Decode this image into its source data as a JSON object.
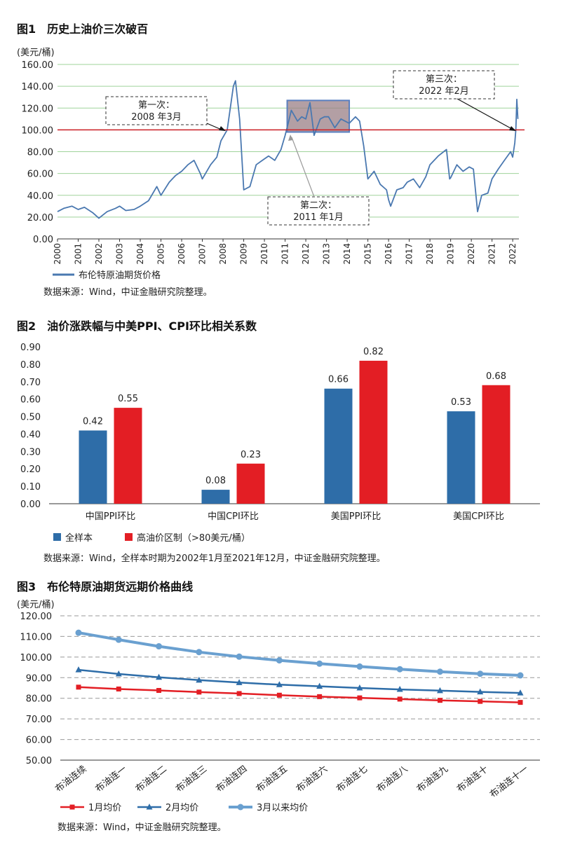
{
  "figures": [
    {
      "title": "图1　历史上油价三次破百",
      "unit": "(美元/桶)",
      "source": "数据来源：Wind，中证金融研究院整理。"
    },
    {
      "title": "图2　油价涨跌幅与中美PPI、CPI环比相关系数",
      "source": "数据来源：Wind，全样本时期为2002年1月至2021年12月，中证金融研究院整理。"
    },
    {
      "title": "图3　布伦特原油期货远期价格曲线",
      "unit": "(美元/桶)",
      "source": "数据来源：Wind，中证金融研究院整理。"
    }
  ],
  "chart_data": [
    {
      "type": "line",
      "title": "历史上油价三次破百",
      "ylabel": "(美元/桶)",
      "ylim": [
        0,
        160
      ],
      "yticks": [
        "0.00",
        "20.00",
        "40.00",
        "60.00",
        "80.00",
        "100.00",
        "120.00",
        "140.00",
        "160.00"
      ],
      "xticks": [
        "2000",
        "2001",
        "2002",
        "2003",
        "2004",
        "2005",
        "2006",
        "2007",
        "2008",
        "2009",
        "2010",
        "2011",
        "2012",
        "2013",
        "2014",
        "2015",
        "2016",
        "2017",
        "2018",
        "2019",
        "2020",
        "2021",
        "2022"
      ],
      "xlim": [
        2000,
        2022.3
      ],
      "series": [
        {
          "name": "布伦特原油期货价格",
          "color": "#4a78b0",
          "x": [
            2000.0,
            2000.3,
            2000.7,
            2001.0,
            2001.3,
            2001.7,
            2002.0,
            2002.4,
            2002.8,
            2003.0,
            2003.3,
            2003.7,
            2004.0,
            2004.4,
            2004.8,
            2005.0,
            2005.4,
            2005.7,
            2006.0,
            2006.3,
            2006.6,
            2006.9,
            2007.0,
            2007.4,
            2007.7,
            2007.9,
            2008.2,
            2008.5,
            2008.6,
            2008.8,
            2009.0,
            2009.3,
            2009.6,
            2009.9,
            2010.2,
            2010.5,
            2010.8,
            2011.0,
            2011.2,
            2011.3,
            2011.6,
            2011.8,
            2012.0,
            2012.2,
            2012.4,
            2012.7,
            2012.9,
            2013.1,
            2013.4,
            2013.7,
            2013.9,
            2014.1,
            2014.4,
            2014.6,
            2014.8,
            2015.0,
            2015.3,
            2015.6,
            2015.9,
            2016.0,
            2016.1,
            2016.4,
            2016.7,
            2016.9,
            2017.2,
            2017.5,
            2017.8,
            2018.0,
            2018.4,
            2018.8,
            2018.95,
            2019.0,
            2019.3,
            2019.6,
            2019.9,
            2020.1,
            2020.3,
            2020.5,
            2020.8,
            2021.0,
            2021.3,
            2021.6,
            2021.9,
            2022.0,
            2022.1,
            2022.15,
            2022.2,
            2022.25
          ],
          "y": [
            25,
            28,
            30,
            27,
            29,
            24,
            19,
            25,
            28,
            30,
            26,
            27,
            30,
            35,
            48,
            40,
            52,
            58,
            62,
            68,
            72,
            60,
            55,
            68,
            75,
            90,
            100,
            140,
            145,
            110,
            45,
            48,
            68,
            72,
            76,
            72,
            82,
            95,
            110,
            118,
            108,
            112,
            110,
            125,
            95,
            110,
            112,
            112,
            102,
            110,
            108,
            106,
            112,
            108,
            85,
            55,
            62,
            50,
            45,
            36,
            30,
            45,
            47,
            52,
            55,
            47,
            57,
            68,
            76,
            82,
            55,
            56,
            68,
            62,
            66,
            64,
            25,
            40,
            42,
            55,
            64,
            72,
            80,
            75,
            88,
            100,
            128,
            110
          ]
        }
      ],
      "annotations": [
        {
          "text": "第一次：",
          "text2": "2008 年3月"
        },
        {
          "text": "第二次：",
          "text2": "2011 年1月"
        },
        {
          "text": "第三次：",
          "text2": "2022 年2月"
        }
      ],
      "reference_line": {
        "y": 100,
        "color": "#cc1f26"
      },
      "highlight_box": {
        "x": [
          2011.1,
          2014.1
        ],
        "y": [
          98,
          127
        ]
      },
      "legend": "bottom-left"
    },
    {
      "type": "bar",
      "title": "油价涨跌幅与中美PPI、CPI环比相关系数",
      "categories": [
        "中国PPI环比",
        "中国CPI环比",
        "美国PPI环比",
        "美国CPI环比"
      ],
      "ylim": [
        0,
        0.9
      ],
      "yticks": [
        "0.00",
        "0.10",
        "0.20",
        "0.30",
        "0.40",
        "0.50",
        "0.60",
        "0.70",
        "0.80",
        "0.90"
      ],
      "series": [
        {
          "name": "全样本",
          "color": "#2e6da8",
          "values": [
            0.42,
            0.08,
            0.66,
            0.53
          ],
          "labels": [
            "0.42",
            "0.08",
            "0.66",
            "0.53"
          ]
        },
        {
          "name": "高油价区制（>80美元/桶）",
          "color": "#e31e24",
          "values": [
            0.55,
            0.23,
            0.82,
            0.68
          ],
          "labels": [
            "0.55",
            "0.23",
            "0.82",
            "0.68"
          ]
        }
      ],
      "legend": "bottom-left"
    },
    {
      "type": "line",
      "title": "布伦特原油期货远期价格曲线",
      "ylabel": "(美元/桶)",
      "ylim": [
        50,
        120
      ],
      "yticks": [
        "50.00",
        "60.00",
        "70.00",
        "80.00",
        "90.00",
        "100.00",
        "110.00",
        "120.00"
      ],
      "categories": [
        "布油连续",
        "布油连一",
        "布油连二",
        "布油连三",
        "布油连四",
        "布油连五",
        "布油连六",
        "布油连七",
        "布油连八",
        "布油连九",
        "布油连十",
        "布油连十一"
      ],
      "series": [
        {
          "name": "1月均价",
          "color": "#e31e24",
          "marker": "square",
          "values": [
            85.4,
            84.5,
            83.8,
            83.0,
            82.3,
            81.5,
            80.8,
            80.2,
            79.6,
            79.0,
            78.5,
            78.0
          ]
        },
        {
          "name": "2月均价",
          "color": "#2e6da8",
          "marker": "triangle",
          "values": [
            93.8,
            91.8,
            90.2,
            88.8,
            87.6,
            86.6,
            85.8,
            85.0,
            84.3,
            83.7,
            83.1,
            82.6
          ]
        },
        {
          "name": "3月以来均价",
          "color": "#6aa0d0",
          "marker": "circle",
          "values": [
            111.8,
            108.4,
            105.2,
            102.4,
            100.2,
            98.4,
            96.8,
            95.4,
            94.1,
            92.9,
            91.9,
            91.1
          ]
        }
      ],
      "grid": "dashed",
      "legend": "bottom-left"
    }
  ]
}
